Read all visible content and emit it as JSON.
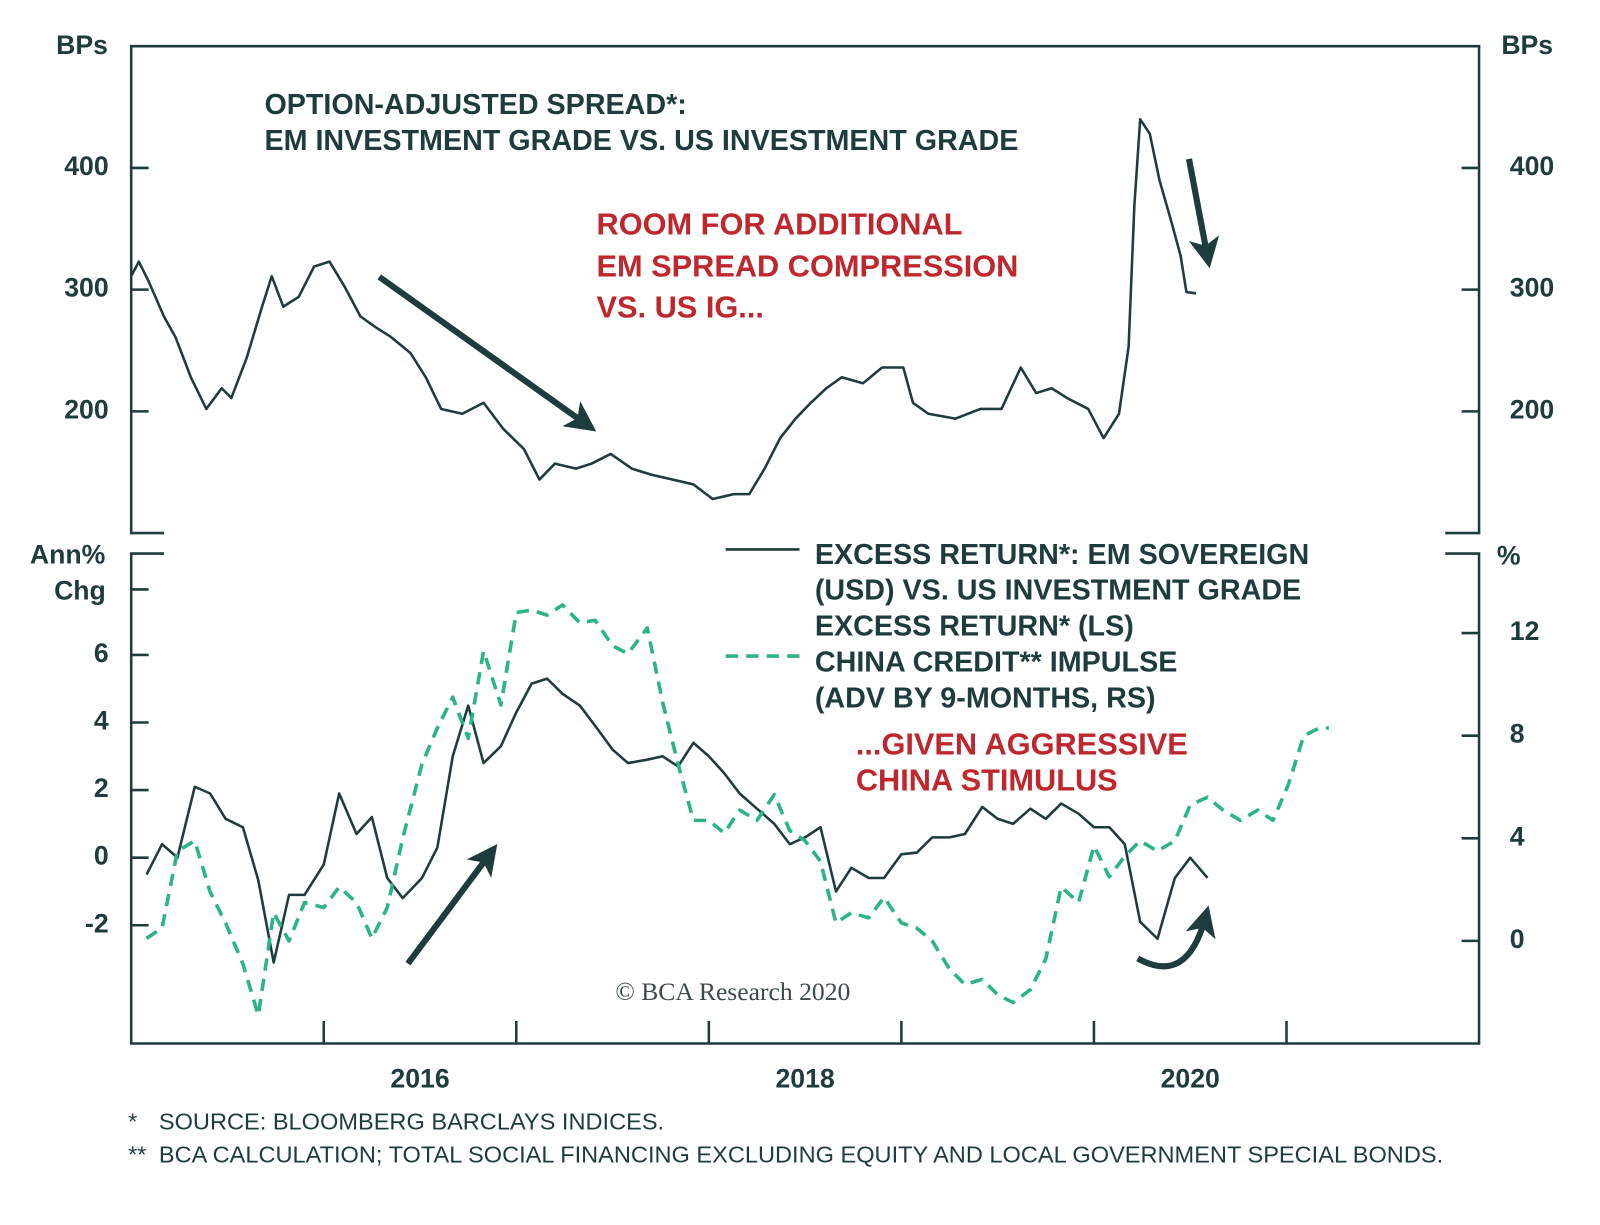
{
  "chart_data": [
    {
      "type": "line",
      "title": [
        "OPTION-ADJUSTED SPREAD*:",
        "EM INVESTMENT GRADE VS. US INVESTMENT GRADE"
      ],
      "annotation": [
        "ROOM FOR ADDITIONAL",
        "EM SPREAD COMPRESSION",
        "VS. US IG..."
      ],
      "ylabel": "BPs",
      "y2label": "BPs",
      "xlim": [
        2015,
        2022
      ],
      "ylim": [
        100,
        500
      ],
      "yticks": [
        200,
        300,
        400
      ],
      "y2lim": [
        100,
        500
      ],
      "y2ticks": [
        200,
        300,
        400
      ],
      "x": [
        2015.0,
        2015.04,
        2015.09,
        2015.17,
        2015.23,
        2015.31,
        2015.39,
        2015.47,
        2015.52,
        2015.6,
        2015.68,
        2015.73,
        2015.79,
        2015.87,
        2015.95,
        2016.03,
        2016.11,
        2016.19,
        2016.27,
        2016.35,
        2016.45,
        2016.53,
        2016.61,
        2016.72,
        2016.83,
        2016.93,
        2017.04,
        2017.12,
        2017.2,
        2017.31,
        2017.39,
        2017.49,
        2017.6,
        2017.7,
        2017.81,
        2017.92,
        2018.02,
        2018.13,
        2018.21,
        2018.29,
        2018.37,
        2018.45,
        2018.53,
        2018.61,
        2018.69,
        2018.8,
        2018.9,
        2019.01,
        2019.06,
        2019.14,
        2019.28,
        2019.41,
        2019.52,
        2019.62,
        2019.7,
        2019.78,
        2019.86,
        2019.97,
        2020.05,
        2020.13,
        2020.18,
        2020.21,
        2020.24,
        2020.29,
        2020.34,
        2020.4,
        2020.45,
        2020.48,
        2020.53
      ],
      "series": [
        {
          "color": "#1e3b3d",
          "style": "solid",
          "values": [
            311,
            323,
            307,
            278,
            261,
            228,
            202,
            219,
            211,
            244,
            286,
            311,
            286,
            294,
            319,
            323,
            302,
            278,
            269,
            261,
            248,
            228,
            202,
            198,
            207,
            186,
            169,
            144,
            157,
            153,
            157,
            165,
            153,
            148,
            144,
            140,
            128,
            132,
            132,
            153,
            178,
            194,
            207,
            219,
            228,
            223,
            236,
            236,
            207,
            198,
            194,
            202,
            202,
            236,
            215,
            219,
            211,
            202,
            178,
            198,
            253,
            369,
            440,
            428,
            390,
            357,
            328,
            298,
            297
          ]
        }
      ]
    },
    {
      "type": "line",
      "annotation": [
        "...GIVEN AGGRESSIVE",
        "CHINA STIMULUS"
      ],
      "ylabel": [
        "Ann%",
        "Chg"
      ],
      "y2label": "%",
      "xlim": [
        2015,
        2022
      ],
      "xticks": [
        2016,
        2018,
        2020
      ],
      "xminor_ticks": [
        2017,
        2019,
        2021
      ],
      "ylim": [
        -5.5,
        9
      ],
      "yticks": [
        -2,
        0,
        2,
        4,
        6
      ],
      "y2lim": [
        -4,
        15.1
      ],
      "y2ticks": [
        0,
        4,
        8,
        12
      ],
      "x": [
        2015.08,
        2015.16,
        2015.24,
        2015.33,
        2015.41,
        2015.49,
        2015.58,
        2015.66,
        2015.74,
        2015.82,
        2015.9,
        2016.0,
        2016.08,
        2016.17,
        2016.25,
        2016.33,
        2016.41,
        2016.51,
        2016.59,
        2016.67,
        2016.75,
        2016.83,
        2016.92,
        2017.0,
        2017.08,
        2017.16,
        2017.24,
        2017.33,
        2017.41,
        2017.5,
        2017.58,
        2017.68,
        2017.76,
        2017.84,
        2017.92,
        2018.0,
        2018.08,
        2018.16,
        2018.25,
        2018.34,
        2018.42,
        2018.5,
        2018.58,
        2018.66,
        2018.74,
        2018.83,
        2018.91,
        2019.0,
        2019.08,
        2019.16,
        2019.25,
        2019.33,
        2019.42,
        2019.5,
        2019.58,
        2019.67,
        2019.75,
        2019.83,
        2019.92,
        2020.0,
        2020.08,
        2020.16,
        2020.24,
        2020.33,
        2020.42,
        2020.5,
        2020.59,
        2020.67,
        2020.76,
        2020.85,
        2020.93,
        2021.01,
        2021.09,
        2021.17,
        2021.22
      ],
      "series": [
        {
          "name": "EXCESS RETURN*: EM SOVEREIGN (USD) VS. US INVESTMENT GRADE EXCESS RETURN* (LS)",
          "color": "#1e3b3d",
          "style": "solid",
          "values": [
            -0.5,
            0.4,
            0,
            2.1,
            1.9,
            1.15,
            0.9,
            -0.67,
            -3.1,
            -1.1,
            -1.1,
            -0.2,
            1.9,
            0.7,
            1.2,
            -0.6,
            -1.2,
            -0.6,
            0.3,
            3.0,
            4.5,
            2.8,
            3.3,
            4.3,
            5.15,
            5.3,
            4.85,
            4.5,
            3.9,
            3.2,
            2.8,
            2.9,
            3.0,
            2.7,
            3.4,
            3.0,
            2.5,
            1.9,
            1.45,
            1.0,
            0.4,
            0.6,
            0.9,
            -1.0,
            -0.3,
            -0.6,
            -0.6,
            0.1,
            0.15,
            0.6,
            0.6,
            0.7,
            1.5,
            1.15,
            1.0,
            1.45,
            1.15,
            1.6,
            1.3,
            0.9,
            0.9,
            0.4,
            -1.9,
            -2.4,
            -0.6,
            0,
            -0.6,
            null,
            null,
            null,
            null,
            null,
            null,
            null,
            null
          ]
        },
        {
          "name": "CHINA CREDIT** IMPULSE (ADV BY 9-MONTHS, RS)",
          "color": "#2bb489",
          "style": "dashed",
          "axis": "y2",
          "values": [
            0.1,
            0.5,
            3.5,
            3.9,
            1.9,
            0.7,
            -0.9,
            -2.9,
            1.1,
            0,
            1.5,
            1.3,
            2.1,
            1.5,
            0.1,
            1.3,
            4.0,
            6.9,
            8.3,
            9.5,
            7.9,
            11.3,
            9.2,
            12.8,
            12.9,
            12.7,
            13.1,
            12.4,
            12.5,
            11.5,
            11.2,
            12.2,
            9.3,
            6.9,
            4.7,
            4.7,
            4.2,
            5.1,
            4.7,
            5.7,
            4.3,
            3.9,
            3.1,
            0.7,
            1.1,
            0.9,
            1.7,
            0.7,
            0.5,
            0,
            -1.1,
            -1.7,
            -1.5,
            -2.1,
            -2.4,
            -1.9,
            -0.7,
            2.1,
            1.5,
            3.7,
            2.5,
            3.3,
            3.9,
            3.5,
            3.9,
            5.3,
            5.6,
            5.1,
            4.7,
            5.1,
            4.7,
            6.1,
            8.0,
            8.3,
            8.3
          ]
        }
      ]
    }
  ],
  "credit": "© BCA Research 2020",
  "footnotes": [
    {
      "mark": "*",
      "text": "SOURCE: BLOOMBERG BARCLAYS INDICES."
    },
    {
      "mark": "**",
      "text": "BCA CALCULATION; TOTAL SOCIAL FINANCING EXCLUDING EQUITY AND LOCAL GOVERNMENT SPECIAL BONDS."
    }
  ]
}
